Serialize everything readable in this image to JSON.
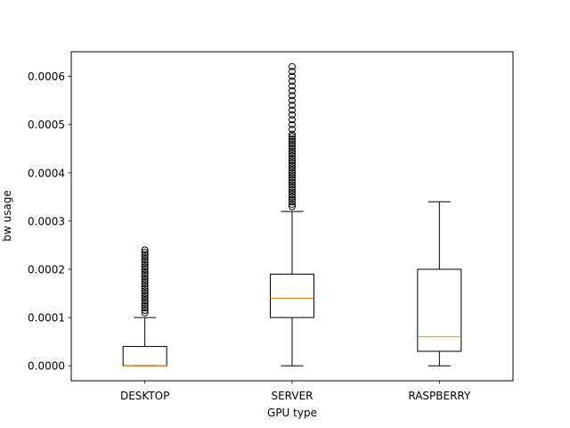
{
  "chart_data": {
    "type": "box",
    "xlabel": "GPU type",
    "ylabel": "bw usage",
    "ylim": [
      -3.1e-05,
      0.000651
    ],
    "yticks": [
      0.0,
      0.0001,
      0.0002,
      0.0003,
      0.0004,
      0.0005,
      0.0006
    ],
    "ytick_labels": [
      "0.0000",
      "0.0001",
      "0.0002",
      "0.0003",
      "0.0004",
      "0.0005",
      "0.0006"
    ],
    "categories": [
      "DESKTOP",
      "SERVER",
      "RASPBERRY"
    ],
    "boxes": [
      {
        "category": "DESKTOP",
        "whisker_low": 0.0,
        "q1": 0.0,
        "median": 0.0,
        "q3": 4e-05,
        "whisker_high": 0.0001,
        "outliers": [
          0.00011,
          0.000115,
          0.00012,
          0.000125,
          0.00013,
          0.000135,
          0.00014,
          0.000145,
          0.00015,
          0.000155,
          0.00016,
          0.000165,
          0.00017,
          0.000175,
          0.00018,
          0.000185,
          0.00019,
          0.000195,
          0.0002,
          0.000205,
          0.00021,
          0.000215,
          0.00022,
          0.000225,
          0.00023,
          0.000235,
          0.00024
        ]
      },
      {
        "category": "SERVER",
        "whisker_low": 0.0,
        "q1": 0.0001,
        "median": 0.00014,
        "q3": 0.00019,
        "whisker_high": 0.00032,
        "outliers": [
          0.00033,
          0.000335,
          0.00034,
          0.000345,
          0.00035,
          0.000355,
          0.00036,
          0.000365,
          0.00037,
          0.000375,
          0.00038,
          0.000385,
          0.00039,
          0.000395,
          0.0004,
          0.000405,
          0.00041,
          0.000415,
          0.00042,
          0.000425,
          0.00043,
          0.000435,
          0.00044,
          0.000445,
          0.00045,
          0.000455,
          0.00046,
          0.000465,
          0.00047,
          0.000475,
          0.00048,
          0.00049,
          0.0005,
          0.00051,
          0.00052,
          0.00053,
          0.00054,
          0.00055,
          0.00056,
          0.00057,
          0.00058,
          0.00059,
          0.0006,
          0.00061,
          0.00062
        ]
      },
      {
        "category": "RASPBERRY",
        "whisker_low": 0.0,
        "q1": 3e-05,
        "median": 6e-05,
        "q3": 0.0002,
        "whisker_high": 0.00034,
        "outliers": []
      }
    ],
    "colors": {
      "box": "#000000",
      "median": "#ff7f0e"
    }
  }
}
